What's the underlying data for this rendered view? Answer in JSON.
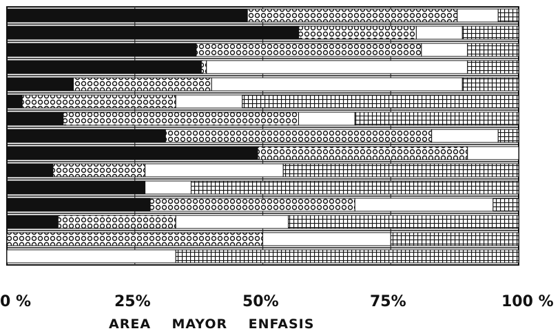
{
  "chart_data": {
    "type": "bar",
    "orientation": "horizontal",
    "stacked": true,
    "percent_scale": true,
    "xlabel": "AREA    MAYOR    ENFASIS",
    "xlim": [
      0,
      100
    ],
    "x_tick_labels": [
      "0 %",
      "25%",
      "50%",
      "75%",
      "100 %"
    ],
    "grid": "vertical lines at 25, 50, 75",
    "legend": "none",
    "series": [
      {
        "pattern": "solid-black",
        "values": [
          47,
          57,
          37,
          38,
          13,
          3,
          11,
          31,
          49,
          9,
          27,
          28,
          10,
          0,
          0
        ]
      },
      {
        "pattern": "dotted-circles",
        "values": [
          41,
          23,
          44,
          1,
          27,
          30,
          46,
          52,
          41,
          18,
          0,
          40,
          23,
          50,
          0
        ]
      },
      {
        "pattern": "white",
        "values": [
          8,
          9,
          9,
          51,
          49,
          13,
          11,
          13,
          10,
          27,
          9,
          27,
          22,
          25,
          33
        ]
      },
      {
        "pattern": "grid-hatch",
        "values": [
          4,
          11,
          10,
          10,
          11,
          54,
          32,
          4,
          0,
          46,
          64,
          5,
          45,
          25,
          67
        ]
      }
    ]
  }
}
